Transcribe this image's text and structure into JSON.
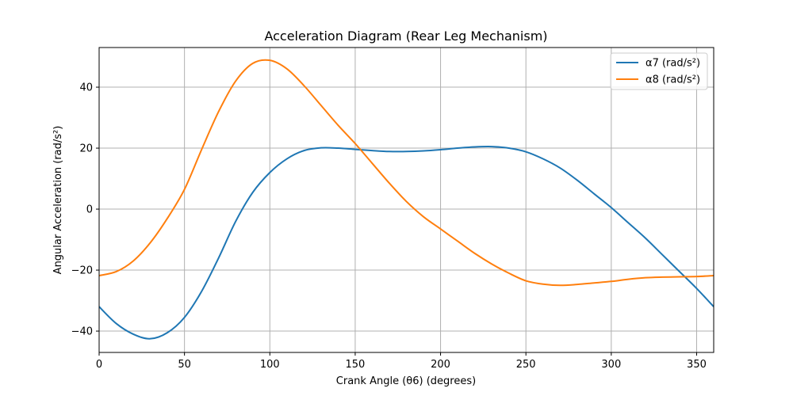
{
  "chart_data": {
    "type": "line",
    "title": "Acceleration Diagram (Rear Leg Mechanism)",
    "xlabel": "Crank Angle (θ6) (degrees)",
    "ylabel": "Angular Acceleration (rad/s²)",
    "xlim": [
      0,
      360
    ],
    "ylim": [
      -47,
      53
    ],
    "xticks": [
      0,
      50,
      100,
      150,
      200,
      250,
      300,
      350
    ],
    "yticks": [
      -40,
      -20,
      0,
      20,
      40
    ],
    "grid": true,
    "legend_position": "top-right",
    "series": [
      {
        "name": "α7 (rad/s²)",
        "color": "#1f77b4",
        "x": [
          0,
          10,
          20,
          30,
          40,
          50,
          60,
          70,
          80,
          90,
          100,
          110,
          120,
          130,
          140,
          150,
          160,
          170,
          180,
          190,
          200,
          210,
          220,
          230,
          240,
          250,
          260,
          270,
          280,
          290,
          300,
          310,
          320,
          330,
          340,
          350,
          360
        ],
        "y": [
          -32,
          -37.5,
          -41,
          -42.5,
          -40.5,
          -35.5,
          -27,
          -16,
          -4,
          5.5,
          12,
          16.5,
          19.2,
          20.1,
          20,
          19.6,
          19.2,
          18.9,
          18.9,
          19.1,
          19.5,
          20,
          20.4,
          20.5,
          20,
          18.8,
          16.5,
          13.5,
          9.5,
          5,
          0.5,
          -4.5,
          -9.5,
          -15,
          -20.5,
          -26,
          -32
        ]
      },
      {
        "name": "α8 (rad/s²)",
        "color": "#ff7f0e",
        "x": [
          0,
          10,
          20,
          30,
          40,
          50,
          60,
          70,
          80,
          90,
          100,
          110,
          120,
          130,
          140,
          150,
          160,
          170,
          180,
          190,
          200,
          210,
          220,
          230,
          240,
          250,
          260,
          270,
          280,
          290,
          300,
          310,
          320,
          330,
          340,
          350,
          360
        ],
        "y": [
          -21.8,
          -20.5,
          -17,
          -11,
          -3,
          6.5,
          19.5,
          32,
          42,
          47.8,
          48.8,
          46,
          40.5,
          34,
          27.5,
          21.5,
          15,
          8.5,
          2.5,
          -2.5,
          -6.5,
          -10.5,
          -14.5,
          -18,
          -21,
          -23.5,
          -24.6,
          -25,
          -24.7,
          -24.2,
          -23.7,
          -23,
          -22.5,
          -22.3,
          -22.2,
          -22.1,
          -21.8
        ]
      }
    ]
  }
}
